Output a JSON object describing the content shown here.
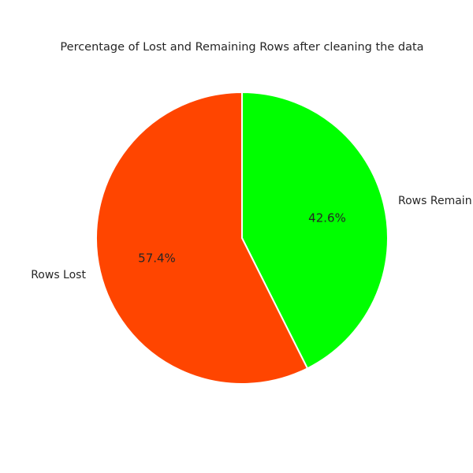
{
  "chart_data": {
    "type": "pie",
    "title": "Percentage of Lost and Remaining Rows after cleaning the data",
    "slices": [
      {
        "label": "Rows Remain",
        "value": 42.6,
        "pct_label": "42.6%",
        "color": "#00FF00"
      },
      {
        "label": "Rows Lost",
        "value": 57.4,
        "pct_label": "57.4%",
        "color": "#FF4500"
      }
    ],
    "start_angle_deg": 90,
    "direction": "clockwise",
    "edge_color": "#FFFFFF",
    "legend": "none"
  }
}
